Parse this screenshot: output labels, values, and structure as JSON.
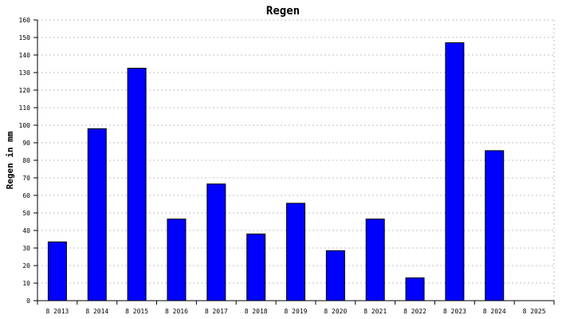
{
  "chart_data": {
    "type": "bar",
    "title": "Regen",
    "xlabel": "",
    "ylabel": "Regen in mm",
    "categories": [
      "8 2013",
      "8 2014",
      "8 2015",
      "8 2016",
      "8 2017",
      "8 2018",
      "8 2019",
      "8 2020",
      "8 2021",
      "8 2022",
      "8 2023",
      "8 2024",
      "8 2025"
    ],
    "values": [
      33.5,
      98,
      132.5,
      46.5,
      66.5,
      38,
      55.5,
      28.5,
      46.5,
      13,
      147,
      85.5,
      0
    ],
    "ylim": [
      0,
      160
    ],
    "yticks": [
      0,
      10,
      20,
      30,
      40,
      50,
      60,
      70,
      80,
      90,
      100,
      110,
      120,
      130,
      140,
      150,
      160
    ],
    "grid": true,
    "legend": "none",
    "colors": {
      "bar": "#0000ff",
      "bar_border": "#000000",
      "grid": "#c0c0c0",
      "axis": "#000000"
    }
  }
}
